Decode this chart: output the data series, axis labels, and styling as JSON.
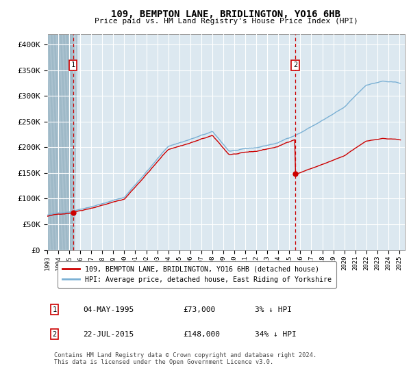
{
  "title": "109, BEMPTON LANE, BRIDLINGTON, YO16 6HB",
  "subtitle": "Price paid vs. HM Land Registry's House Price Index (HPI)",
  "background_color": "#ffffff",
  "plot_bg_color": "#dce8f0",
  "hpi_color": "#7ab0d4",
  "price_color": "#cc0000",
  "marker_color": "#cc0000",
  "vline_color": "#cc0000",
  "grid_color": "#ffffff",
  "ylim": [
    0,
    420000
  ],
  "yticks": [
    0,
    50000,
    100000,
    150000,
    200000,
    250000,
    300000,
    350000,
    400000
  ],
  "ytick_labels": [
    "£0",
    "£50K",
    "£100K",
    "£150K",
    "£200K",
    "£250K",
    "£300K",
    "£350K",
    "£400K"
  ],
  "legend_label_red": "109, BEMPTON LANE, BRIDLINGTON, YO16 6HB (detached house)",
  "legend_label_blue": "HPI: Average price, detached house, East Riding of Yorkshire",
  "annotation1_date": "04-MAY-1995",
  "annotation1_price": "£73,000",
  "annotation1_hpi": "3% ↓ HPI",
  "annotation2_date": "22-JUL-2015",
  "annotation2_price": "£148,000",
  "annotation2_hpi": "34% ↓ HPI",
  "footer": "Contains HM Land Registry data © Crown copyright and database right 2024.\nThis data is licensed under the Open Government Licence v3.0.",
  "sale1_year": 1995.34,
  "sale1_value": 73000,
  "sale2_year": 2015.55,
  "sale2_value": 148000,
  "hatch_end_year": 1995.34,
  "xmin": 1993.0,
  "xmax": 2025.5
}
